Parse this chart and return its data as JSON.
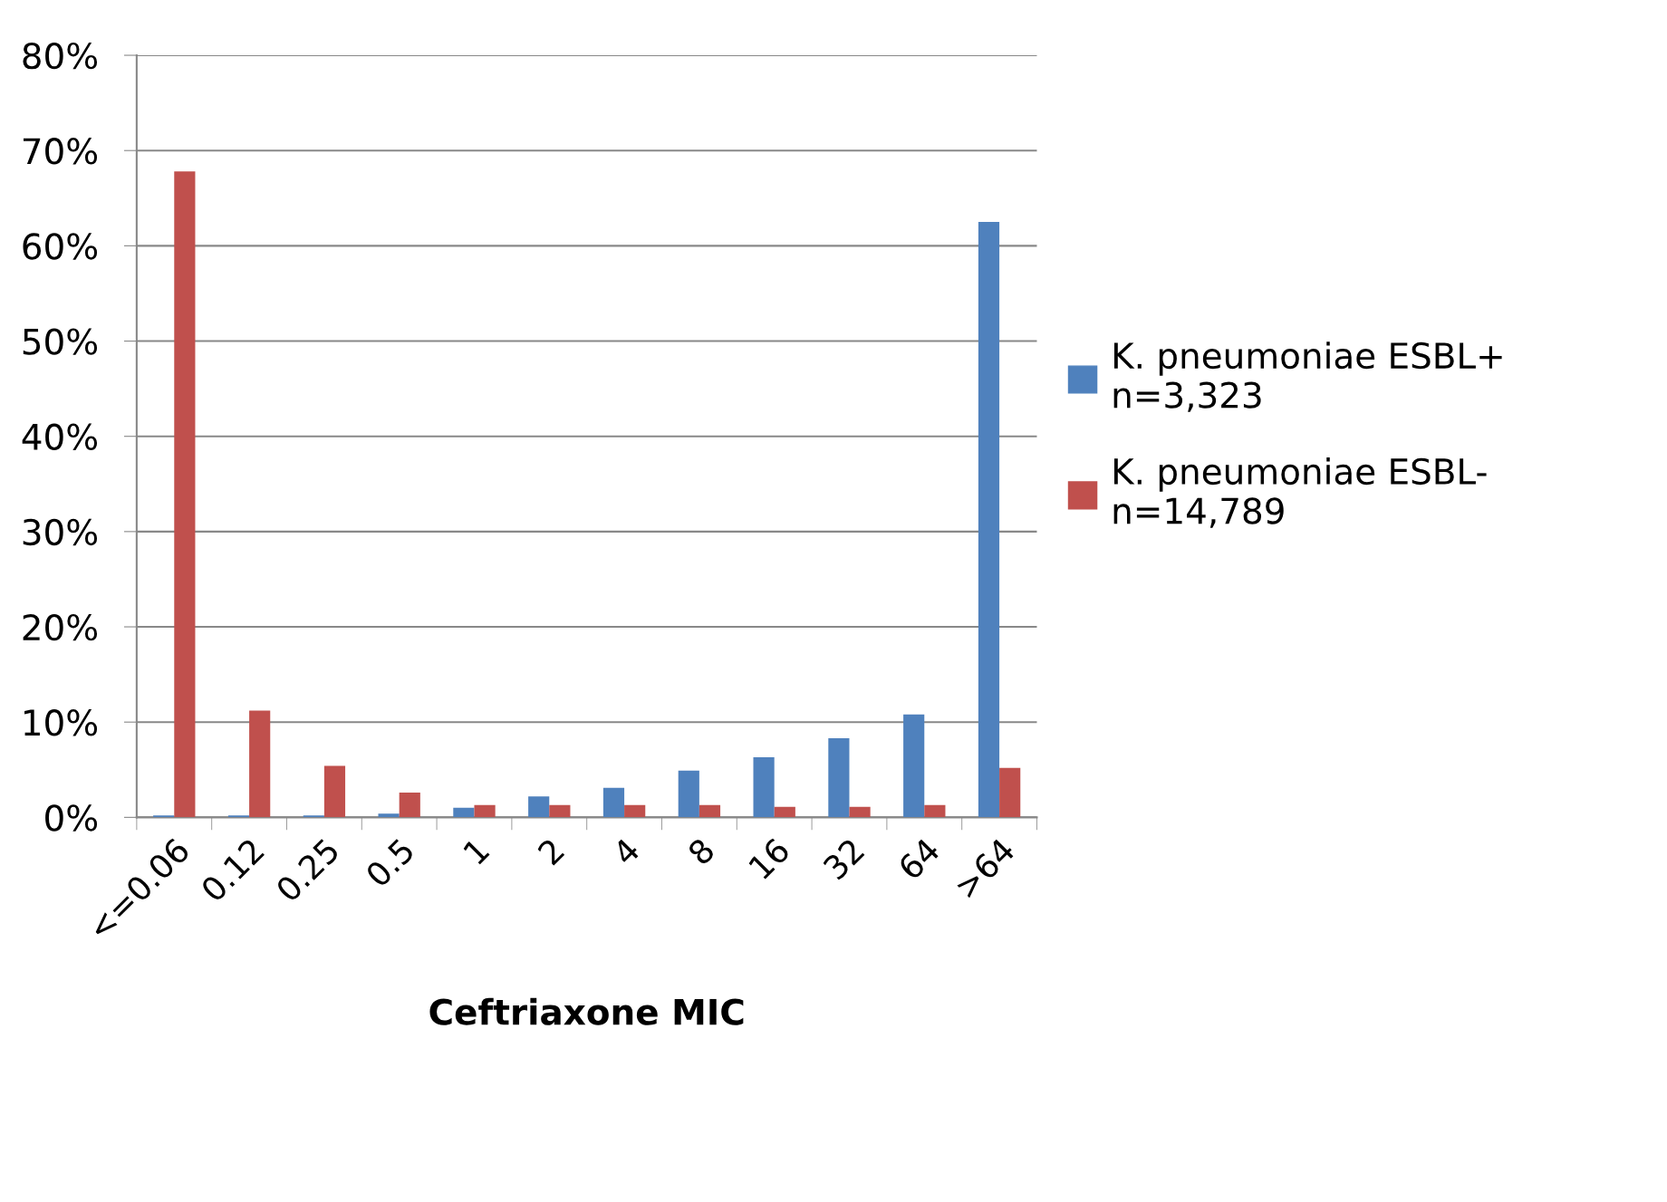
{
  "chart_data": {
    "type": "bar",
    "xlabel": "Ceftriaxone MIC",
    "categories": [
      "<=0.06",
      "0.12",
      "0.25",
      "0.5",
      "1",
      "2",
      "4",
      "8",
      "16",
      "32",
      "64",
      ">64"
    ],
    "series": [
      {
        "name": "K. pneumoniae ESBL+\nn=3,323",
        "color": "#4f81bd",
        "values": [
          0.2,
          0.2,
          0.2,
          0.4,
          1.0,
          2.2,
          3.1,
          4.9,
          6.3,
          8.3,
          10.8,
          62.5
        ]
      },
      {
        "name": "K. pneumoniae ESBL-\nn=14,789",
        "color": "#c0504d",
        "values": [
          67.8,
          11.2,
          5.4,
          2.6,
          1.3,
          1.3,
          1.3,
          1.3,
          1.1,
          1.1,
          1.3,
          5.2
        ]
      }
    ],
    "ylim": [
      0,
      80
    ],
    "yticks": [
      {
        "value": 0,
        "label": "0%"
      },
      {
        "value": 10,
        "label": "10%"
      },
      {
        "value": 20,
        "label": "20%"
      },
      {
        "value": 30,
        "label": "30%"
      },
      {
        "value": 40,
        "label": "40%"
      },
      {
        "value": 50,
        "label": "50%"
      },
      {
        "value": 60,
        "label": "60%"
      },
      {
        "value": 70,
        "label": "70%"
      },
      {
        "value": 80,
        "label": "80%"
      }
    ],
    "grid": "y",
    "legend": "right"
  }
}
